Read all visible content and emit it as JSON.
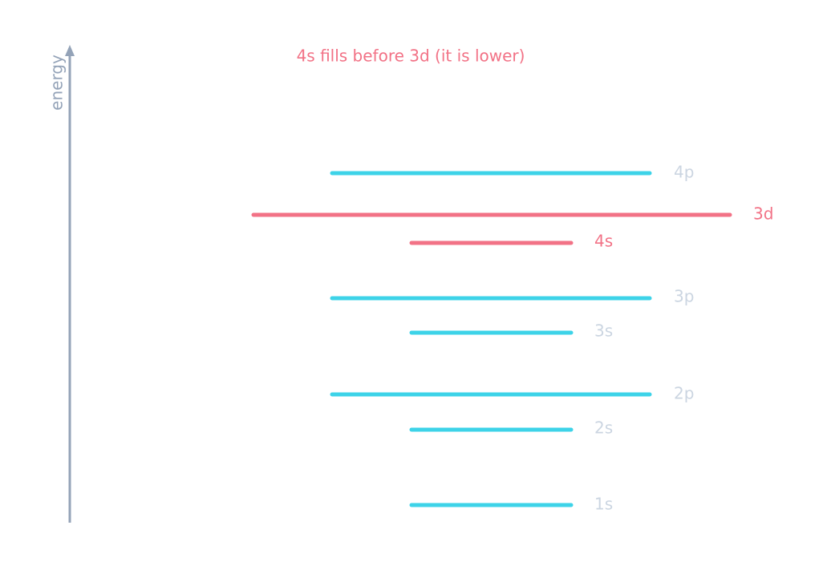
{
  "annotation": "4s fills before 3d (it is lower)",
  "axis_label": "energy",
  "levels": [
    {
      "label": "4p"
    },
    {
      "label": "3d"
    },
    {
      "label": "4s"
    },
    {
      "label": "3p"
    },
    {
      "label": "3s"
    },
    {
      "label": "2p"
    },
    {
      "label": "2s"
    },
    {
      "label": "1s"
    }
  ]
}
